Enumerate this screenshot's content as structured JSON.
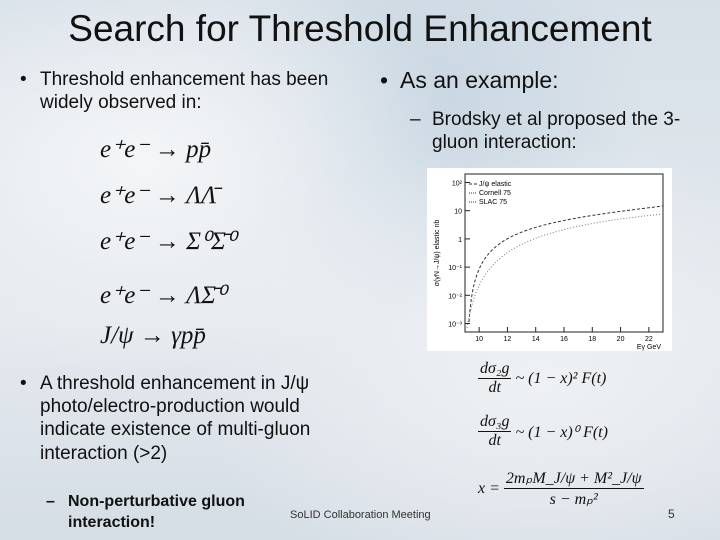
{
  "title": "Search for Threshold Enhancement",
  "left": {
    "bullet": "Threshold enhancement has been widely observed in:",
    "reactions": [
      "e⁺e⁻ → pp̄",
      "e⁺e⁻ → ΛΛ̄",
      "e⁺e⁻ → Σ⁰Σ̄⁰",
      "e⁺e⁻ → ΛΣ̄⁰",
      "J/ψ → γpp̄"
    ]
  },
  "right": {
    "bullet": "As an example:",
    "sub": "Brodsky et al proposed the 3-gluon interaction:"
  },
  "figure": {
    "ylabel": "σ(γN→J/ψ) elastic nb",
    "xlabel": "Eγ GeV",
    "legend": [
      "J/ψ elastic",
      "Cornell 75",
      "SLAC 75"
    ],
    "log": true,
    "ylim": [
      0.0005,
      200
    ],
    "yticks": [
      {
        "value": 100,
        "label": "10²"
      },
      {
        "value": 10,
        "label": "10"
      },
      {
        "value": 1,
        "label": "1"
      },
      {
        "value": 0.1,
        "label": "10⁻¹"
      },
      {
        "value": 0.01,
        "label": "10⁻²"
      },
      {
        "value": 0.001,
        "label": "10⁻³"
      }
    ],
    "xlim": [
      9,
      23
    ],
    "xticks": [
      10,
      12,
      14,
      16,
      18,
      20,
      22
    ]
  },
  "bottom": {
    "bullet": "A threshold enhancement in J/ψ photo/electro-production would indicate existence of multi-gluon interaction (>2)",
    "sub": "Non-perturbative gluon interaction!"
  },
  "equations": [
    {
      "lhs": "",
      "num": "dσ₂g",
      "den": "dt",
      "rhs": "~ (1 − x)² F(t)"
    },
    {
      "lhs": "",
      "num": "dσ₃g",
      "den": "dt",
      "rhs": "~ (1 − x)⁰ F(t)"
    },
    {
      "lhs": "x =",
      "num": "2mₚM_J/ψ + M²_J/ψ",
      "den": "s − mₚ²",
      "rhs": ""
    }
  ],
  "footer": {
    "center": "SoLID Collaboration Meeting",
    "page": "5"
  }
}
